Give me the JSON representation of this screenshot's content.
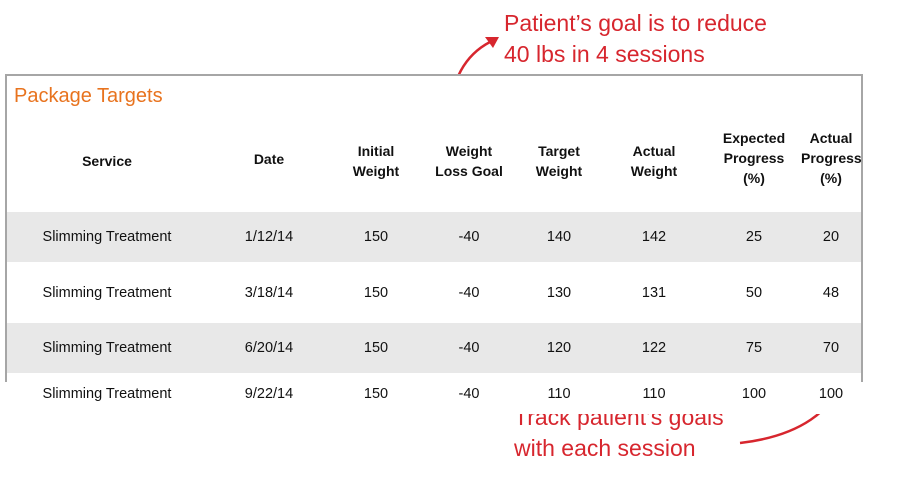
{
  "callouts": {
    "top": [
      "Patient’s goal is to reduce",
      "40 lbs in 4 sessions"
    ],
    "bottom": [
      "Track patient’s goals",
      "with each session"
    ]
  },
  "panel": {
    "title": "Package Targets"
  },
  "table": {
    "headers": [
      [
        "Service"
      ],
      [
        "Date"
      ],
      [
        "Initial",
        "Weight"
      ],
      [
        "Weight",
        "Loss Goal"
      ],
      [
        "Target",
        "Weight"
      ],
      [
        "Actual",
        "Weight"
      ],
      [
        "Expected",
        "Progress",
        "(%)"
      ],
      [
        "Actual",
        "Progress",
        "(%)"
      ]
    ],
    "rows": [
      [
        "Slimming Treatment",
        "1/12/14",
        "150",
        "-40",
        "140",
        "142",
        "25",
        "20"
      ],
      [
        "Slimming Treatment",
        "3/18/14",
        "150",
        "-40",
        "130",
        "131",
        "50",
        "48"
      ],
      [
        "Slimming Treatment",
        "6/20/14",
        "150",
        "-40",
        "120",
        "122",
        "75",
        "70"
      ],
      [
        "Slimming Treatment",
        "9/22/14",
        "150",
        "-40",
        "110",
        "110",
        "100",
        "100"
      ]
    ]
  },
  "colors": {
    "callout": "#d7262e",
    "title": "#e8731e",
    "stripe": "#e8e8e8",
    "border": "#a6a6a6"
  }
}
